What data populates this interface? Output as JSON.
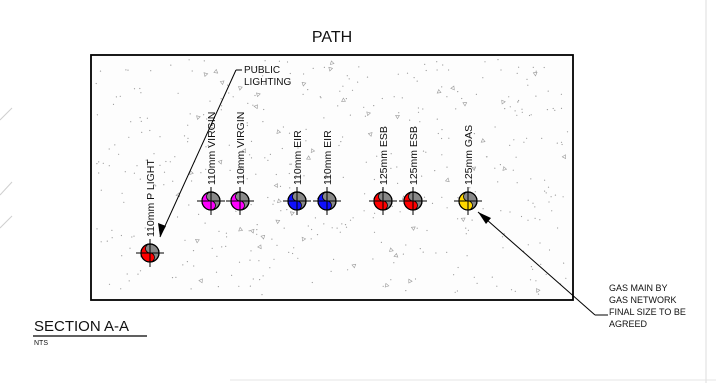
{
  "drawing": {
    "path_label": "PATH",
    "section_title": "SECTION A-A",
    "section_scale": "NTS"
  },
  "ducts": [
    {
      "label": "110mm P LIGHT",
      "colors": [
        "#ff0000",
        "#888888"
      ]
    },
    {
      "label": "110mm VIRGIN",
      "colors": [
        "#ff00ff",
        "#888888"
      ]
    },
    {
      "label": "110mm VIRGIN",
      "colors": [
        "#ff00ff",
        "#888888"
      ]
    },
    {
      "label": "110mm EIR",
      "colors": [
        "#1010ff",
        "#888888"
      ]
    },
    {
      "label": "110mm EIR",
      "colors": [
        "#1010ff",
        "#888888"
      ]
    },
    {
      "label": "125mm ESB",
      "colors": [
        "#ff0000",
        "#888888"
      ]
    },
    {
      "label": "125mm ESB",
      "colors": [
        "#ff0000",
        "#888888"
      ]
    },
    {
      "label": "125mm GAS",
      "colors": [
        "#ffd700",
        "#888888"
      ]
    }
  ],
  "callouts": {
    "public_lighting": [
      "PUBLIC",
      "LIGHTING"
    ],
    "gas_main": [
      "GAS MAIN BY",
      "GAS NETWORK",
      "FINAL SIZE TO BE",
      "AGREED"
    ]
  }
}
